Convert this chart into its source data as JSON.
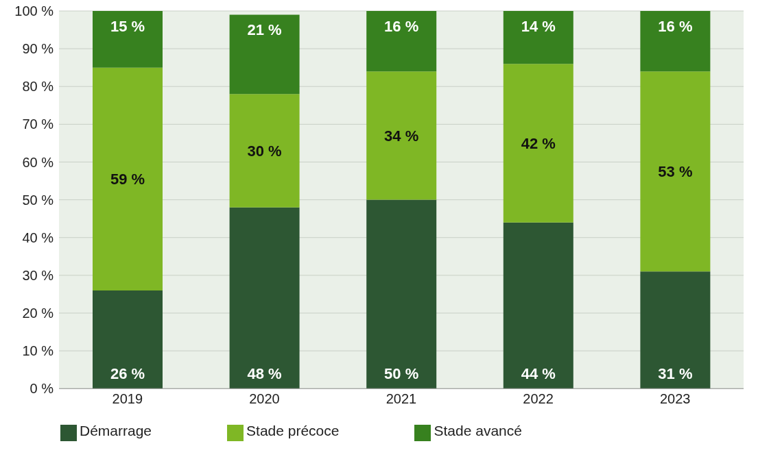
{
  "chart_data": {
    "type": "bar",
    "stacked": true,
    "categories": [
      "2019",
      "2020",
      "2021",
      "2022",
      "2023"
    ],
    "series": [
      {
        "name": "Démarrage",
        "color": "#2d5733",
        "values": [
          26,
          48,
          50,
          44,
          31
        ],
        "value_labels": [
          "26 %",
          "48 %",
          "50 %",
          "44 %",
          "31 %"
        ]
      },
      {
        "name": "Stade précoce",
        "color": "#7fb725",
        "values": [
          59,
          30,
          34,
          42,
          53
        ],
        "value_labels": [
          "59 %",
          "30 %",
          "34 %",
          "42 %",
          "53 %"
        ]
      },
      {
        "name": "Stade avancé",
        "color": "#37811f",
        "values": [
          15,
          21,
          16,
          14,
          16
        ],
        "value_labels": [
          "15 %",
          "21 %",
          "16 %",
          "14 %",
          "16 %"
        ]
      }
    ],
    "ylim": [
      0,
      100
    ],
    "yticks": [
      {
        "value": 0,
        "label": "0 %"
      },
      {
        "value": 10,
        "label": "10 %"
      },
      {
        "value": 20,
        "label": "20 %"
      },
      {
        "value": 30,
        "label": "30 %"
      },
      {
        "value": 40,
        "label": "40 %"
      },
      {
        "value": 50,
        "label": "50 %"
      },
      {
        "value": 60,
        "label": "60 %"
      },
      {
        "value": 70,
        "label": "70 %"
      },
      {
        "value": 80,
        "label": "80 %"
      },
      {
        "value": 90,
        "label": "90 %"
      },
      {
        "value": 100,
        "label": "100 %"
      }
    ],
    "grid": "y",
    "legend": "bottom left"
  }
}
